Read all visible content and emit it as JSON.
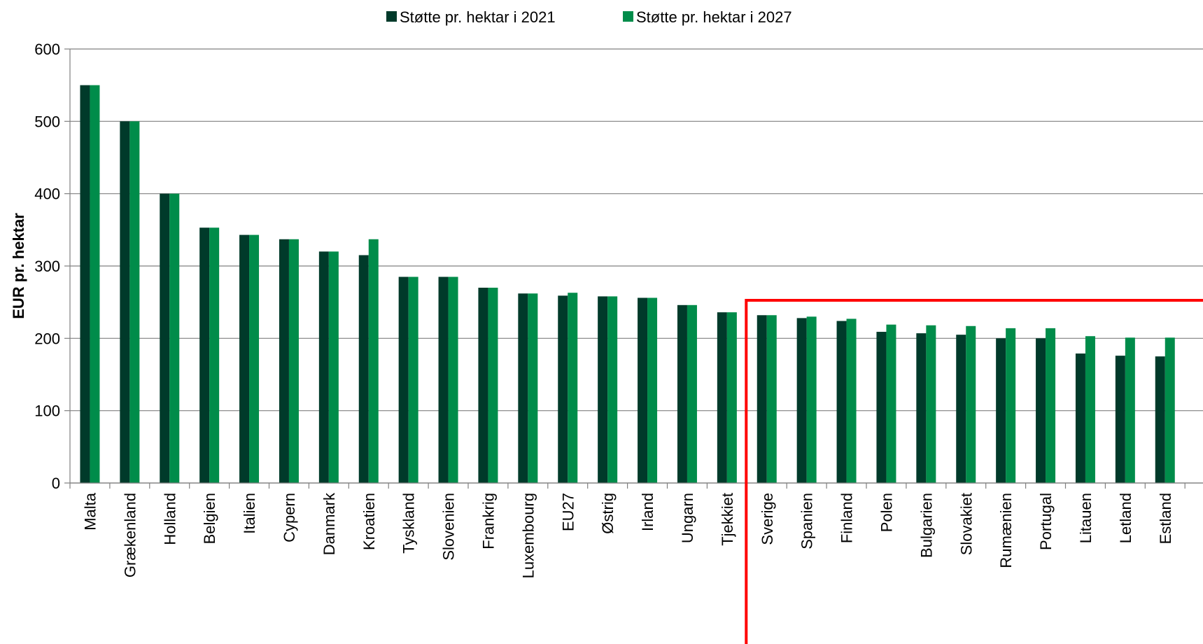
{
  "chart_data": {
    "type": "bar",
    "ylabel": "EUR pr. hektar",
    "ylim": [
      0,
      600
    ],
    "yticks": [
      0,
      100,
      200,
      300,
      400,
      500,
      600
    ],
    "grid": true,
    "legend_position": "top-center",
    "categories": [
      "Malta",
      "Grækenland",
      "Holland",
      "Belgien",
      "Italien",
      "Cypern",
      "Danmark",
      "Kroatien",
      "Tyskland",
      "Slovenien",
      "Frankrig",
      "Luxembourg",
      "EU27",
      "Østrig",
      "Irland",
      "Ungarn",
      "Tjekkiet",
      "Sverige",
      "Spanien",
      "Finland",
      "Polen",
      "Bulgarien",
      "Slovakiet",
      "Rumænien",
      "Portugal",
      "Litauen",
      "Letland",
      "Estland"
    ],
    "series": [
      {
        "name": "Støtte pr. hektar i 2021",
        "color": "#003a2a",
        "values": [
          550,
          500,
          400,
          353,
          343,
          337,
          320,
          315,
          285,
          285,
          270,
          262,
          259,
          258,
          256,
          246,
          236,
          232,
          228,
          224,
          209,
          207,
          205,
          200,
          200,
          179,
          176,
          175
        ]
      },
      {
        "name": "Støtte pr. hektar i 2027",
        "color": "#008c4a",
        "values": [
          550,
          500,
          400,
          353,
          343,
          337,
          320,
          337,
          285,
          285,
          270,
          262,
          263,
          258,
          256,
          246,
          236,
          232,
          230,
          227,
          219,
          218,
          217,
          214,
          214,
          203,
          201,
          201
        ]
      }
    ],
    "highlight": {
      "from_category": "Sverige",
      "to_category": "Estland",
      "color": "#ff0000"
    }
  }
}
